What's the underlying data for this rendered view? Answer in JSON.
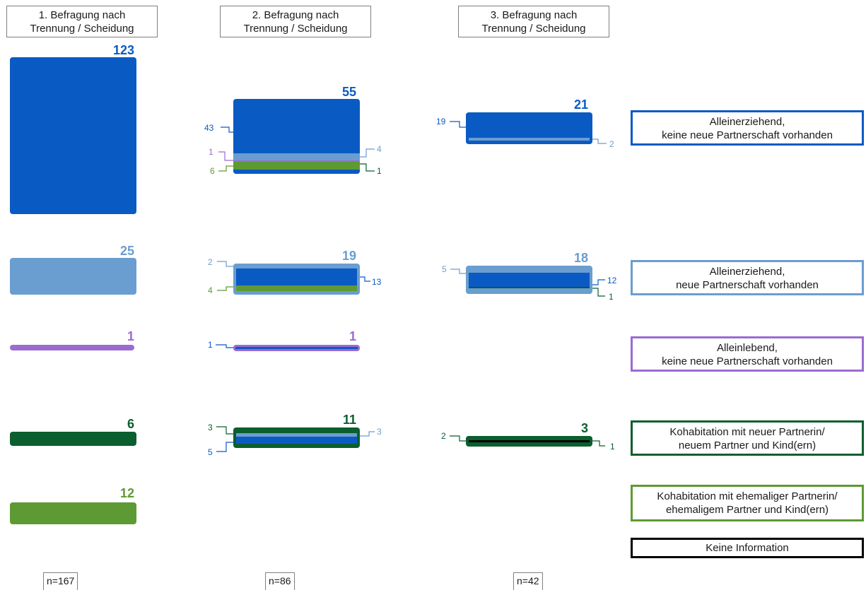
{
  "headers": [
    {
      "line1": "1. Befragung nach",
      "line2": "Trennung / Scheidung"
    },
    {
      "line1": "2. Befragung nach",
      "line2": "Trennung / Scheidung"
    },
    {
      "line1": "3. Befragung nach",
      "line2": "Trennung / Scheidung"
    }
  ],
  "colors": {
    "alleinerziehend_ohne": "#0a5ac4",
    "alleinerziehend_mit": "#6a9dd0",
    "alleinlebend": "#9b6bd1",
    "kohab_neu": "#0b5e2e",
    "kohab_ehemalig": "#5e9a33",
    "keine_info": "#000000"
  },
  "wave1": {
    "totals": {
      "alleinerziehend_ohne": "123",
      "alleinerziehend_mit": "25",
      "alleinlebend": "1",
      "kohab_neu": "6",
      "kohab_ehemalig": "12"
    }
  },
  "wave2": {
    "totals": {
      "alleinerziehend_ohne": "55",
      "alleinerziehend_mit": "19",
      "alleinlebend": "1",
      "kohab_neu": "11"
    },
    "flows": {
      "ae_ohne_left": [
        "43",
        "1",
        "6"
      ],
      "ae_ohne_right": [
        "4",
        "1"
      ],
      "ae_mit_left": [
        "2",
        "4"
      ],
      "ae_mit_right": [
        "13"
      ],
      "alleinlebend_left": [
        "1"
      ],
      "kohab_neu_left": [
        "3",
        "5"
      ],
      "kohab_neu_right": [
        "3"
      ]
    }
  },
  "wave3": {
    "totals": {
      "alleinerziehend_ohne": "21",
      "alleinerziehend_mit": "18",
      "kohab_neu": "3"
    },
    "flows": {
      "ae_ohne_left": [
        "19"
      ],
      "ae_ohne_right": [
        "2"
      ],
      "ae_mit_left": [
        "5"
      ],
      "ae_mit_right": [
        "12",
        "1"
      ],
      "kohab_neu_left": [
        "2"
      ],
      "kohab_neu_right": [
        "1"
      ]
    }
  },
  "legend": [
    {
      "line1": "Alleinerziehend,",
      "line2": "keine neue Partnerschaft vorhanden"
    },
    {
      "line1": "Alleinerziehend,",
      "line2": "neue Partnerschaft vorhanden"
    },
    {
      "line1": "Alleinlebend,",
      "line2": "keine neue Partnerschaft vorhanden"
    },
    {
      "line1": "Kohabitation mit neuer Partnerin/",
      "line2": "neuem Partner und Kind(ern)"
    },
    {
      "line1": "Kohabitation mit ehemaliger Partnerin/",
      "line2": "ehemaligem Partner und Kind(ern)"
    },
    {
      "line1": "Keine Information",
      "line2": ""
    }
  ],
  "sample_sizes": [
    "n=167",
    "n=86",
    "n=42"
  ]
}
